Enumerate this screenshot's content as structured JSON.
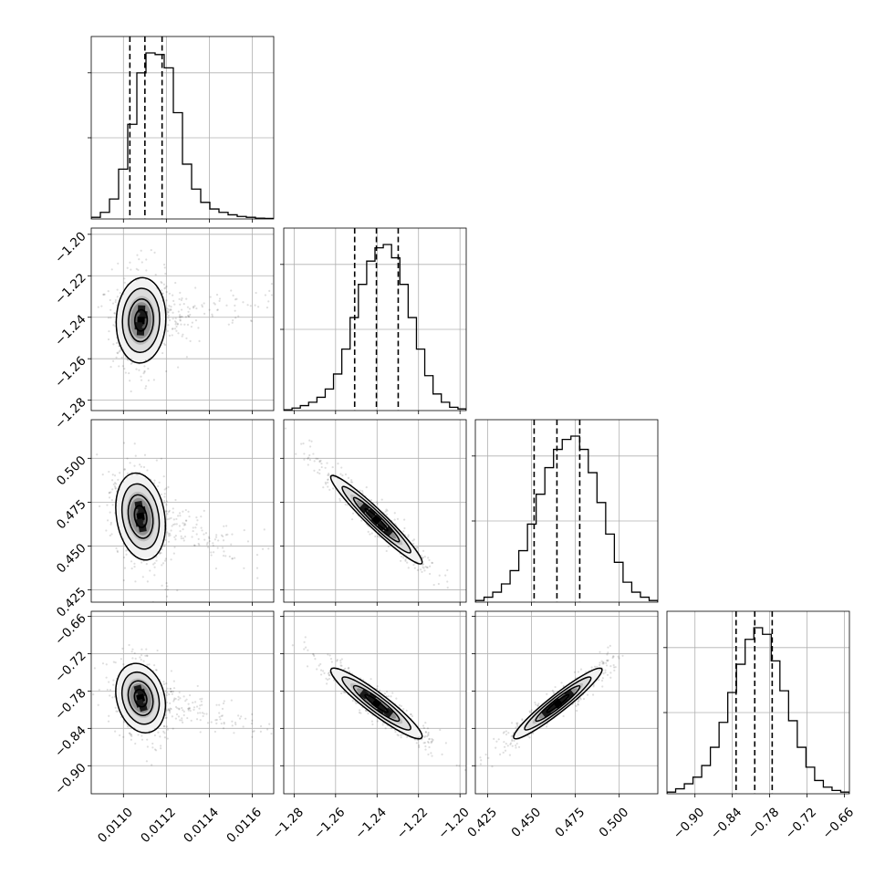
{
  "chart_data": {
    "type": "corner",
    "title": "",
    "params": [
      {
        "key": "p0",
        "range": [
          0.01085,
          0.0117
        ],
        "ticks": [
          0.011,
          0.0112,
          0.0114,
          0.0116
        ],
        "tick_labels": [
          "0.0110",
          "0.0112",
          "0.0114",
          "0.0116"
        ],
        "quantiles": [
          0.01103,
          0.0111,
          0.01118
        ]
      },
      {
        "key": "p1",
        "range": [
          -1.285,
          -1.197
        ],
        "ticks": [
          -1.28,
          -1.26,
          -1.24,
          -1.22,
          -1.2
        ],
        "tick_labels": [
          "−1.28",
          "−1.26",
          "−1.24",
          "−1.22",
          "−1.20"
        ],
        "quantiles": [
          -1.2508,
          -1.2403,
          -1.2298
        ]
      },
      {
        "key": "p2",
        "range": [
          0.418,
          0.522
        ],
        "ticks": [
          0.425,
          0.45,
          0.475,
          0.5
        ],
        "tick_labels": [
          "0.425",
          "0.450",
          "0.475",
          "0.500"
        ],
        "quantiles": [
          0.4515,
          0.4645,
          0.4775
        ]
      },
      {
        "key": "p3",
        "range": [
          -0.945,
          -0.652
        ],
        "ticks": [
          -0.9,
          -0.84,
          -0.78,
          -0.72,
          -0.66
        ],
        "tick_labels": [
          "−0.90",
          "−0.84",
          "−0.78",
          "−0.72",
          "−0.66"
        ],
        "quantiles": [
          -0.834,
          -0.804,
          -0.776
        ]
      }
    ],
    "y_tick_labels": [
      null,
      [
        "−1.28",
        "−1.26",
        "−1.24",
        "−1.22",
        "−1.20"
      ],
      [
        "0.425",
        "0.450",
        "0.475",
        "0.500"
      ],
      [
        "−0.66",
        "−0.72",
        "−0.78",
        "−0.84",
        "−0.90"
      ]
    ],
    "histograms": [
      {
        "param": 0,
        "counts": [
          0.01,
          0.04,
          0.12,
          0.3,
          0.57,
          0.88,
          1.0,
          0.99,
          0.91,
          0.64,
          0.33,
          0.18,
          0.1,
          0.06,
          0.04,
          0.025,
          0.015,
          0.01,
          0.005,
          0.003
        ]
      },
      {
        "param": 1,
        "counts": [
          0.005,
          0.015,
          0.03,
          0.05,
          0.08,
          0.13,
          0.22,
          0.37,
          0.56,
          0.76,
          0.9,
          0.98,
          1.0,
          0.92,
          0.76,
          0.56,
          0.37,
          0.21,
          0.1,
          0.05,
          0.02,
          0.01
        ]
      },
      {
        "param": 2,
        "counts": [
          0.01,
          0.03,
          0.06,
          0.11,
          0.19,
          0.31,
          0.47,
          0.65,
          0.81,
          0.92,
          0.98,
          1.0,
          0.92,
          0.78,
          0.6,
          0.41,
          0.24,
          0.12,
          0.06,
          0.03,
          0.01
        ]
      },
      {
        "param": 3,
        "counts": [
          0.01,
          0.03,
          0.06,
          0.1,
          0.17,
          0.28,
          0.43,
          0.61,
          0.78,
          0.93,
          1.0,
          0.96,
          0.8,
          0.62,
          0.44,
          0.28,
          0.16,
          0.08,
          0.04,
          0.02,
          0.01
        ]
      }
    ],
    "hist_y_ticks": [
      0.5,
      0.9
    ],
    "pairs": [
      {
        "x": 0,
        "y": 1,
        "mean": [
          0.011082,
          -1.2415
        ],
        "sd": [
          5.5e-05,
          0.0098
        ],
        "rho": 0.05,
        "tail": 0.9
      },
      {
        "x": 0,
        "y": 2,
        "mean": [
          0.01108,
          0.4668
        ],
        "sd": [
          5.5e-05,
          0.0118
        ],
        "rho": -0.2,
        "tail": 0.9
      },
      {
        "x": 0,
        "y": 3,
        "mean": [
          0.01108,
          -0.7915
        ],
        "sd": [
          5.5e-05,
          0.0265
        ],
        "rho": -0.2,
        "tail": 0.9
      },
      {
        "x": 1,
        "y": 2,
        "mean": [
          -1.2403,
          0.465
        ],
        "sd": [
          0.0105,
          0.012
        ],
        "rho": -0.96,
        "tail": 0
      },
      {
        "x": 1,
        "y": 3,
        "mean": [
          -1.2403,
          -0.8
        ],
        "sd": [
          0.0105,
          0.027
        ],
        "rho": -0.93,
        "tail": 0
      },
      {
        "x": 2,
        "y": 3,
        "mean": [
          0.465,
          -0.8
        ],
        "sd": [
          0.012,
          0.027
        ],
        "rho": 0.95,
        "tail": 0
      }
    ],
    "contour_levels_sigma": [
      0.5,
      1.0,
      1.5,
      2.0
    ],
    "grid": true,
    "legend": "none"
  }
}
